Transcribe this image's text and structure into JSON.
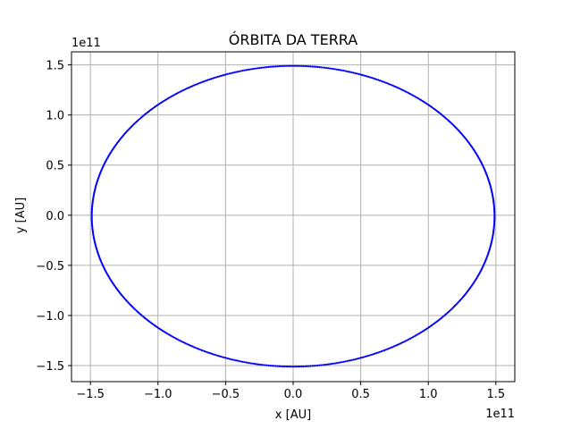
{
  "chart_data": {
    "type": "line",
    "title": "ÓRBITA DA TERRA",
    "xlabel": "x [AU]",
    "ylabel": "y [AU]",
    "x_offset_label": "1e11",
    "y_offset_label": "1e11",
    "xlim": [
      -1.64,
      1.64
    ],
    "ylim": [
      -1.66,
      1.63
    ],
    "xticks": [
      -1.5,
      -1.0,
      -0.5,
      0.0,
      0.5,
      1.0,
      1.5
    ],
    "xtick_labels": [
      "−1.5",
      "−1.0",
      "−0.5",
      "0.0",
      "0.5",
      "1.0",
      "1.5"
    ],
    "yticks": [
      -1.5,
      -1.0,
      -0.5,
      0.0,
      0.5,
      1.0,
      1.5
    ],
    "ytick_labels": [
      "−1.5",
      "−1.0",
      "−0.5",
      "0.0",
      "0.5",
      "1.0",
      "1.5"
    ],
    "grid": true,
    "series": [
      {
        "color": "#0000ff",
        "marker": "dot",
        "orbit": {
          "x_range": [
            -1.49,
            1.49
          ],
          "y_range": [
            -1.51,
            1.49
          ]
        }
      }
    ]
  },
  "colors": {
    "series": "#0000ff",
    "grid": "#b0b0b0",
    "axes": "#000000"
  }
}
